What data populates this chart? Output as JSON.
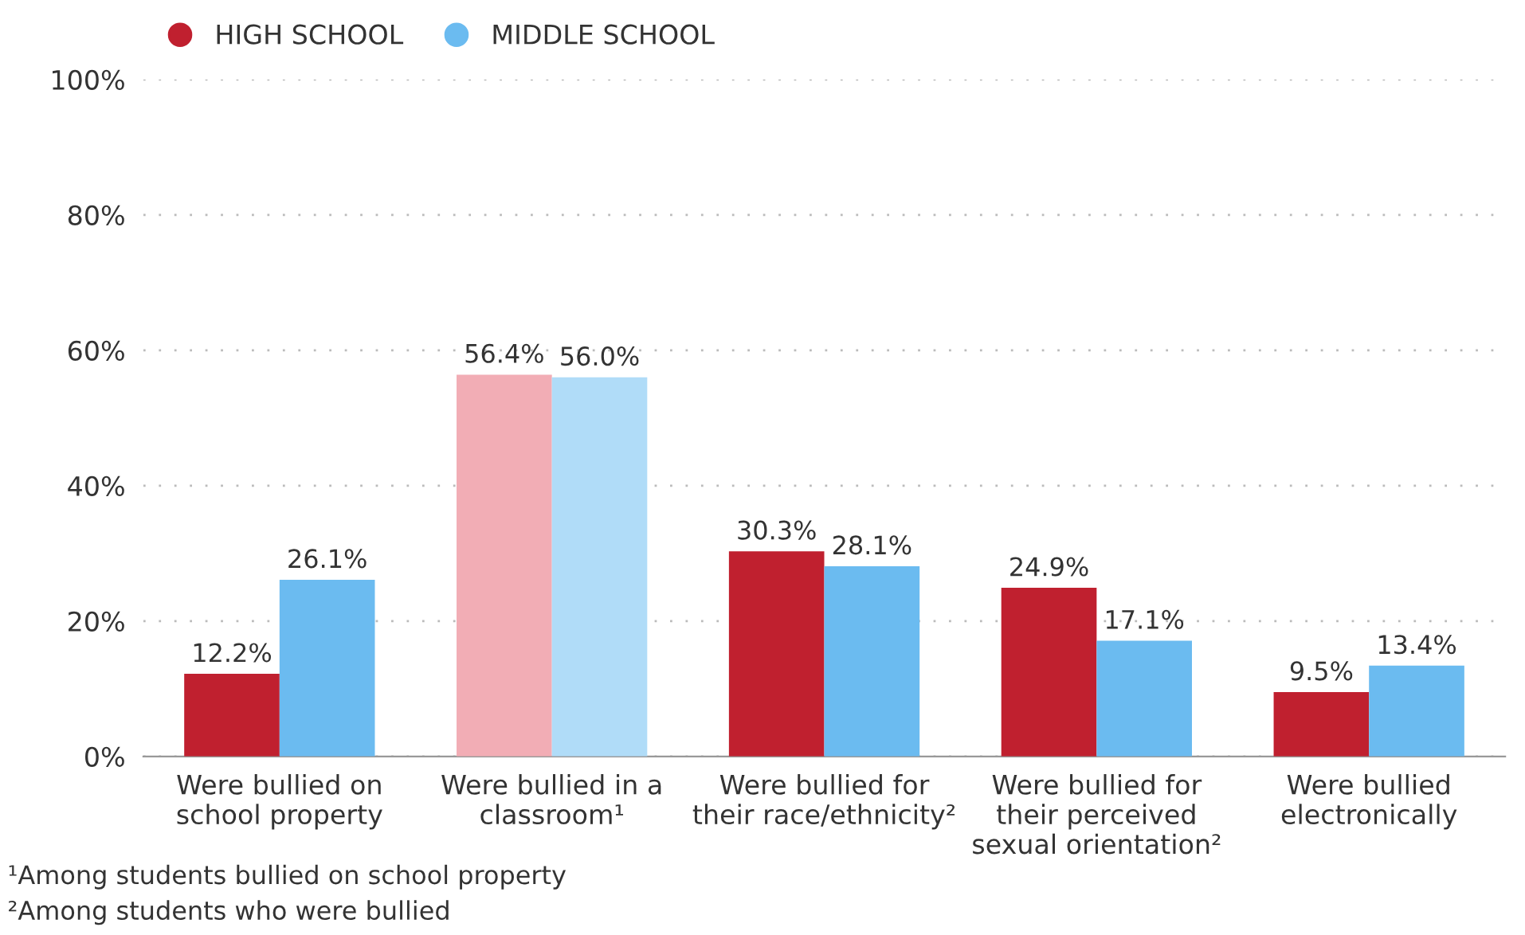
{
  "chart_data": {
    "type": "bar",
    "categories": [
      "Were bullied on\nschool property",
      "Were bullied in a\nclassroom¹",
      "Were bullied for\ntheir race/ethnicity²",
      "Were bullied for\ntheir perceived\nsexual orientation²",
      "Were bullied\nelectronically"
    ],
    "series": [
      {
        "name": "HIGH SCHOOL",
        "color": "#c0202f",
        "colors": [
          "#c0202f",
          "#f2adb5",
          "#c0202f",
          "#c0202f",
          "#c0202f"
        ],
        "values": [
          12.2,
          56.4,
          30.3,
          24.9,
          9.5
        ],
        "value_labels": [
          "12.2%",
          "56.4%",
          "30.3%",
          "24.9%",
          "9.5%"
        ]
      },
      {
        "name": "MIDDLE SCHOOL",
        "color": "#6bbbf0",
        "colors": [
          "#6bbbf0",
          "#b0dcf8",
          "#6bbbf0",
          "#6bbbf0",
          "#6bbbf0"
        ],
        "values": [
          26.1,
          56.0,
          28.1,
          17.1,
          13.4
        ],
        "value_labels": [
          "26.1%",
          "56.0%",
          "28.1%",
          "17.1%",
          "13.4%"
        ]
      }
    ],
    "ylim": [
      0,
      100
    ],
    "yticks": [
      {
        "value": 0,
        "label": "0%"
      },
      {
        "value": 20,
        "label": "20%"
      },
      {
        "value": 40,
        "label": "40%"
      },
      {
        "value": 60,
        "label": "60%"
      },
      {
        "value": 80,
        "label": "80%"
      },
      {
        "value": 100,
        "label": "100%"
      }
    ],
    "grid": "y",
    "legend": "top left",
    "annotations": [
      "¹Among students bullied on school property",
      "²Among students who were bullied"
    ]
  }
}
